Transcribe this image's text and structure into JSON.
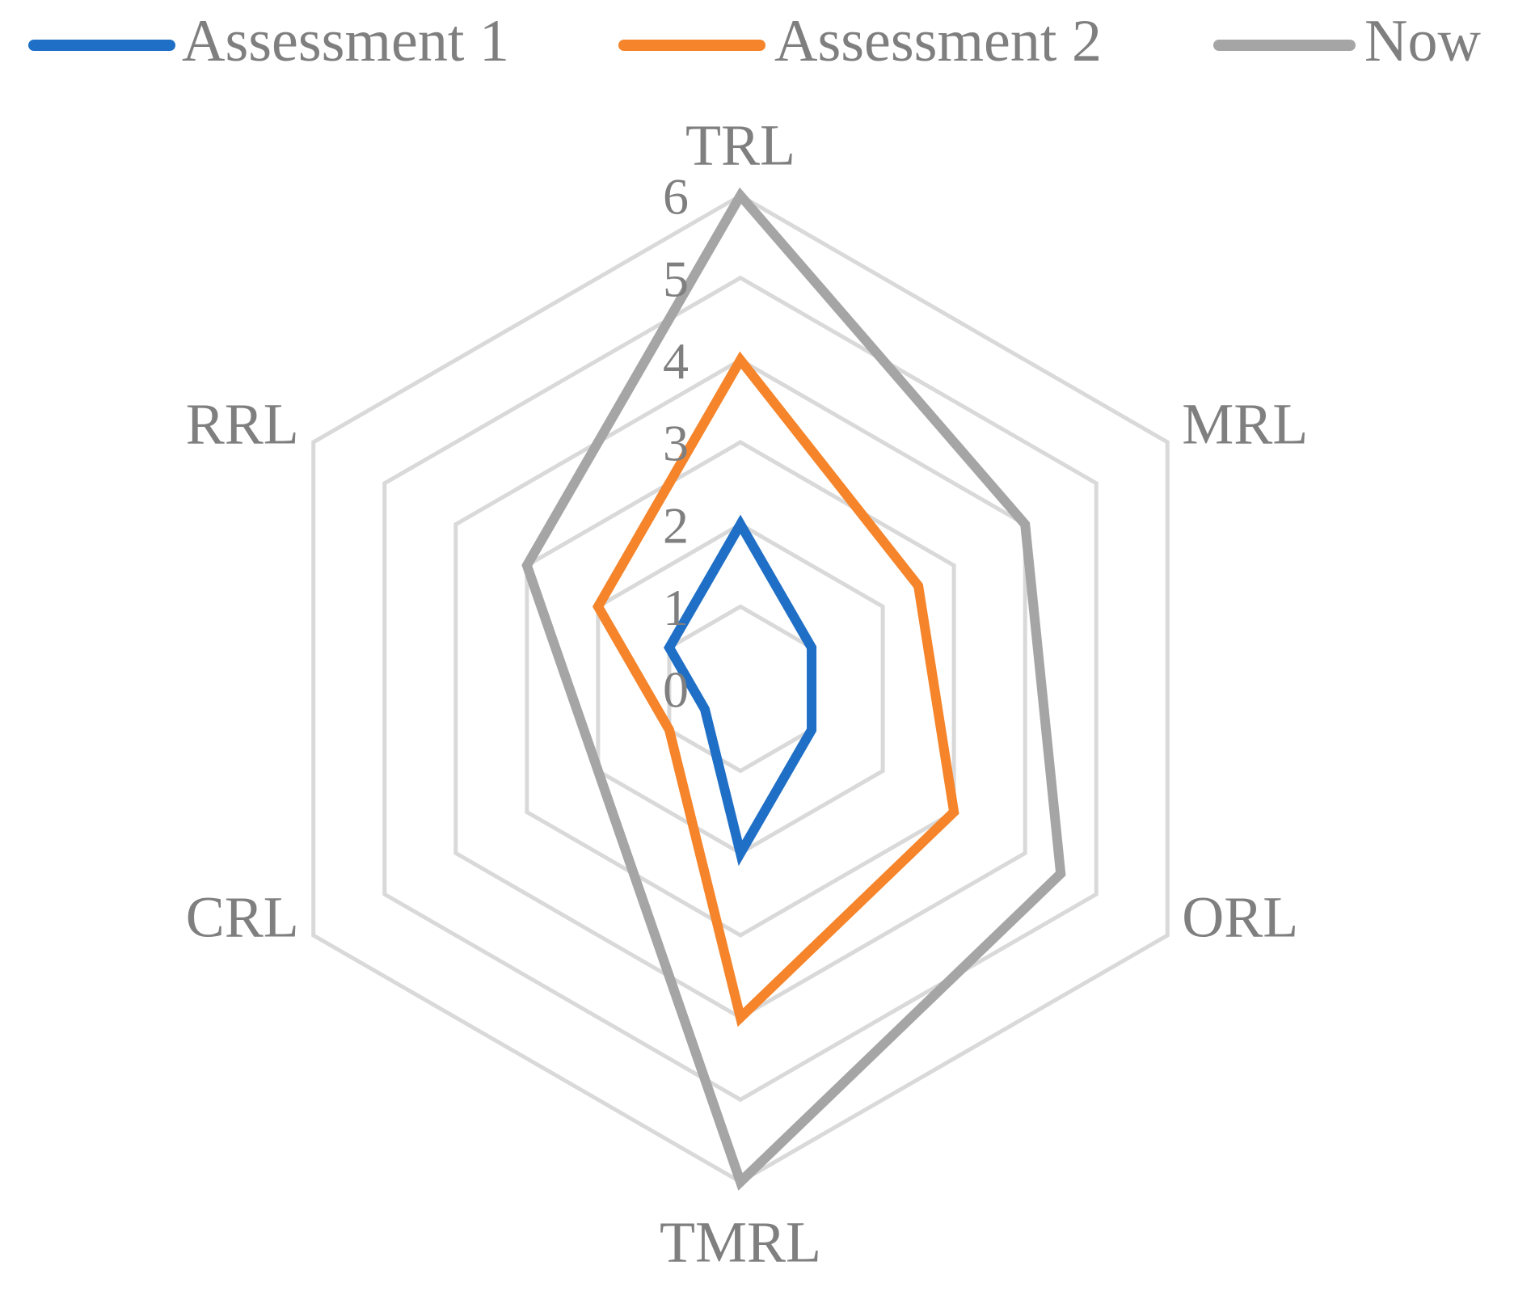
{
  "chart_data": {
    "type": "radar",
    "categories": [
      "TRL",
      "MRL",
      "ORL",
      "TMRL",
      "CRL",
      "RRL"
    ],
    "series": [
      {
        "name": "Assessment 1",
        "color": "#1f6fc6",
        "values": [
          2,
          1,
          1,
          2,
          0.5,
          1
        ]
      },
      {
        "name": "Assessment 2",
        "color": "#f5842a",
        "values": [
          4,
          2.5,
          3,
          4,
          1,
          2
        ]
      },
      {
        "name": "Now",
        "color": "#a5a5a5",
        "values": [
          6,
          4,
          4.5,
          6,
          2,
          3
        ]
      }
    ],
    "ylim": [
      0,
      6
    ],
    "yticks": [
      0,
      1,
      2,
      3,
      4,
      5,
      6
    ],
    "grid": true,
    "legend": "top"
  }
}
